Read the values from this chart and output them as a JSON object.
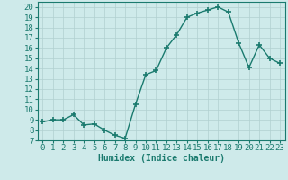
{
  "x": [
    0,
    1,
    2,
    3,
    4,
    5,
    6,
    7,
    8,
    9,
    10,
    11,
    12,
    13,
    14,
    15,
    16,
    17,
    18,
    19,
    20,
    21,
    22,
    23
  ],
  "y": [
    8.8,
    9.0,
    9.0,
    9.5,
    8.5,
    8.6,
    8.0,
    7.5,
    7.2,
    10.5,
    13.4,
    13.8,
    16.0,
    17.3,
    19.0,
    19.4,
    19.7,
    20.0,
    19.5,
    16.5,
    14.1,
    16.3,
    15.0,
    14.5
  ],
  "line_color": "#1a7a6e",
  "marker": "+",
  "marker_size": 4,
  "line_width": 1.0,
  "bg_color": "#ceeaea",
  "grid_color": "#b0d0d0",
  "xlabel": "Humidex (Indice chaleur)",
  "ylabel_ticks": [
    7,
    8,
    9,
    10,
    11,
    12,
    13,
    14,
    15,
    16,
    17,
    18,
    19,
    20
  ],
  "xticks": [
    0,
    1,
    2,
    3,
    4,
    5,
    6,
    7,
    8,
    9,
    10,
    11,
    12,
    13,
    14,
    15,
    16,
    17,
    18,
    19,
    20,
    21,
    22,
    23
  ],
  "xlim": [
    -0.5,
    23.5
  ],
  "ylim": [
    7,
    20.5
  ],
  "xlabel_fontsize": 7,
  "tick_fontsize": 6.5
}
